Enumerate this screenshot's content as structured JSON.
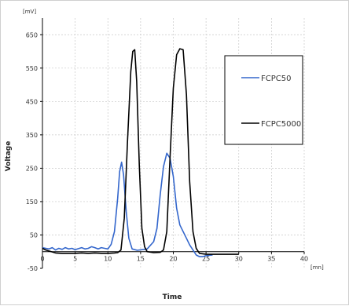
{
  "chart_data": {
    "type": "line",
    "xlabel": "Time",
    "ylabel": "Voltage",
    "x_unit": "[mn]",
    "y_unit": "[mV]",
    "xlim": [
      0,
      40
    ],
    "ylim": [
      -50,
      700
    ],
    "x_ticks": [
      0,
      5,
      10,
      15,
      20,
      25,
      30,
      35,
      40
    ],
    "y_ticks": [
      -50,
      50,
      150,
      250,
      350,
      450,
      550,
      650
    ],
    "grid": true,
    "legend_position": "top-right",
    "series": [
      {
        "name": "FCPC50",
        "color": "#3366cc",
        "x": [
          0,
          0.5,
          1,
          1.5,
          2,
          2.5,
          3,
          3.5,
          4,
          4.5,
          5,
          5.5,
          6,
          6.5,
          7,
          7.5,
          8,
          8.5,
          9,
          9.5,
          10,
          10.5,
          11,
          11.5,
          11.8,
          12.1,
          12.4,
          12.8,
          13.2,
          13.7,
          14.5,
          16,
          17,
          17.5,
          18,
          18.5,
          19,
          19.5,
          20,
          20.5,
          21,
          21.5,
          22,
          22.5,
          23,
          23.5,
          24,
          24.5,
          25,
          26
        ],
        "y": [
          12,
          10,
          8,
          12,
          5,
          10,
          7,
          12,
          8,
          10,
          6,
          9,
          12,
          8,
          10,
          15,
          12,
          8,
          12,
          10,
          8,
          22,
          60,
          160,
          240,
          268,
          230,
          120,
          40,
          8,
          4,
          8,
          30,
          70,
          170,
          255,
          295,
          280,
          225,
          130,
          80,
          60,
          40,
          20,
          5,
          -10,
          -15,
          -15,
          -12,
          -10
        ]
      },
      {
        "name": "FCPC5000",
        "color": "#000000",
        "x": [
          0,
          0.5,
          1,
          2,
          3,
          4,
          5,
          6,
          7,
          8,
          9,
          10,
          11,
          11.5,
          12,
          12.5,
          13,
          13.5,
          13.8,
          14.1,
          14.4,
          14.8,
          15.2,
          15.6,
          16,
          17,
          18,
          18.5,
          19,
          19.5,
          20,
          20.5,
          21,
          21.5,
          22,
          22.5,
          23,
          23.5,
          24,
          25,
          26,
          30
        ],
        "y": [
          10,
          5,
          2,
          -4,
          -5,
          -5,
          -5,
          -4,
          -5,
          -4,
          -5,
          -5,
          -4,
          -3,
          5,
          100,
          330,
          540,
          600,
          605,
          510,
          260,
          70,
          15,
          0,
          -3,
          -2,
          5,
          60,
          280,
          490,
          590,
          608,
          605,
          470,
          210,
          60,
          10,
          -5,
          -8,
          -8,
          -8
        ]
      }
    ]
  }
}
